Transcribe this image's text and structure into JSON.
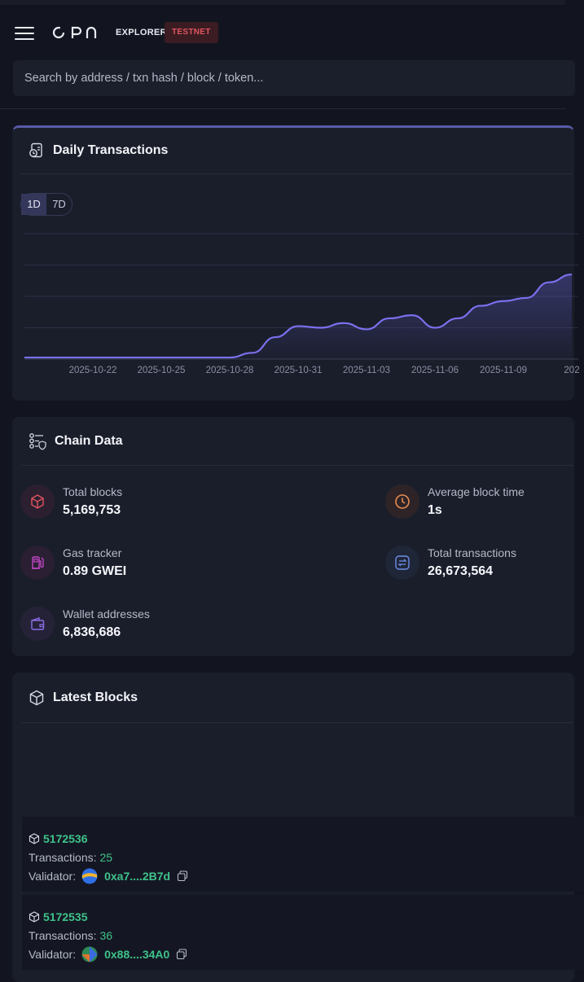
{
  "header": {
    "brand": "OPN",
    "section": "EXPLORER",
    "network_badge": "TESTNET",
    "search_placeholder": "Search by address / txn hash / block / token..."
  },
  "daily_transactions": {
    "title": "Daily Transactions",
    "ranges": [
      "1D",
      "7D"
    ],
    "selected_range": "1D"
  },
  "chart_data": {
    "type": "area",
    "title": "Daily Transactions",
    "x": [
      "2025-10-19",
      "2025-10-20",
      "2025-10-21",
      "2025-10-22",
      "2025-10-23",
      "2025-10-24",
      "2025-10-25",
      "2025-10-26",
      "2025-10-27",
      "2025-10-28",
      "2025-10-29",
      "2025-10-30",
      "2025-10-31",
      "2025-11-01",
      "2025-11-02",
      "2025-11-03",
      "2025-11-04",
      "2025-11-05",
      "2025-11-06",
      "2025-11-07",
      "2025-11-08",
      "2025-11-09",
      "2025-11-10",
      "2025-11-11",
      "2025-11-12"
    ],
    "values": [
      0.1,
      0.1,
      0.1,
      0.1,
      0.1,
      0.1,
      0.1,
      0.1,
      0.1,
      0.1,
      0.4,
      1.4,
      2.1,
      2.0,
      2.3,
      1.9,
      2.6,
      2.8,
      2.0,
      2.6,
      3.4,
      3.7,
      3.9,
      4.9,
      5.4
    ],
    "xtick_labels": [
      "2025-10-22",
      "2025-10-25",
      "2025-10-28",
      "2025-10-31",
      "2025-11-03",
      "2025-11-06",
      "2025-11-09",
      "202"
    ],
    "ylim": [
      0,
      8
    ],
    "grid": true,
    "xlabel": "",
    "ylabel": ""
  },
  "chain_data": {
    "title": "Chain Data",
    "stats": [
      {
        "label": "Total blocks",
        "value": "5,169,753",
        "icon": "cube-icon",
        "color": "#e2545f"
      },
      {
        "label": "Average block time",
        "value": "1s",
        "icon": "clock-icon",
        "color": "#e98b4c"
      },
      {
        "label": "Gas tracker",
        "value": "0.89 GWEI",
        "icon": "gas-pump-icon",
        "color": "#c548c9"
      },
      {
        "label": "Total transactions",
        "value": "26,673,564",
        "icon": "transfer-icon",
        "color": "#6e8de8"
      },
      {
        "label": "Wallet addresses",
        "value": "6,836,686",
        "icon": "wallet-icon",
        "color": "#8d6ee8"
      }
    ]
  },
  "latest_blocks": {
    "title": "Latest Blocks",
    "transactions_label": "Transactions:",
    "validator_label": "Validator:",
    "blocks": [
      {
        "number": "5172536",
        "transactions": "25",
        "validator": "0xa7....2B7d"
      },
      {
        "number": "5172535",
        "transactions": "36",
        "validator": "0x88....34A0"
      }
    ]
  }
}
